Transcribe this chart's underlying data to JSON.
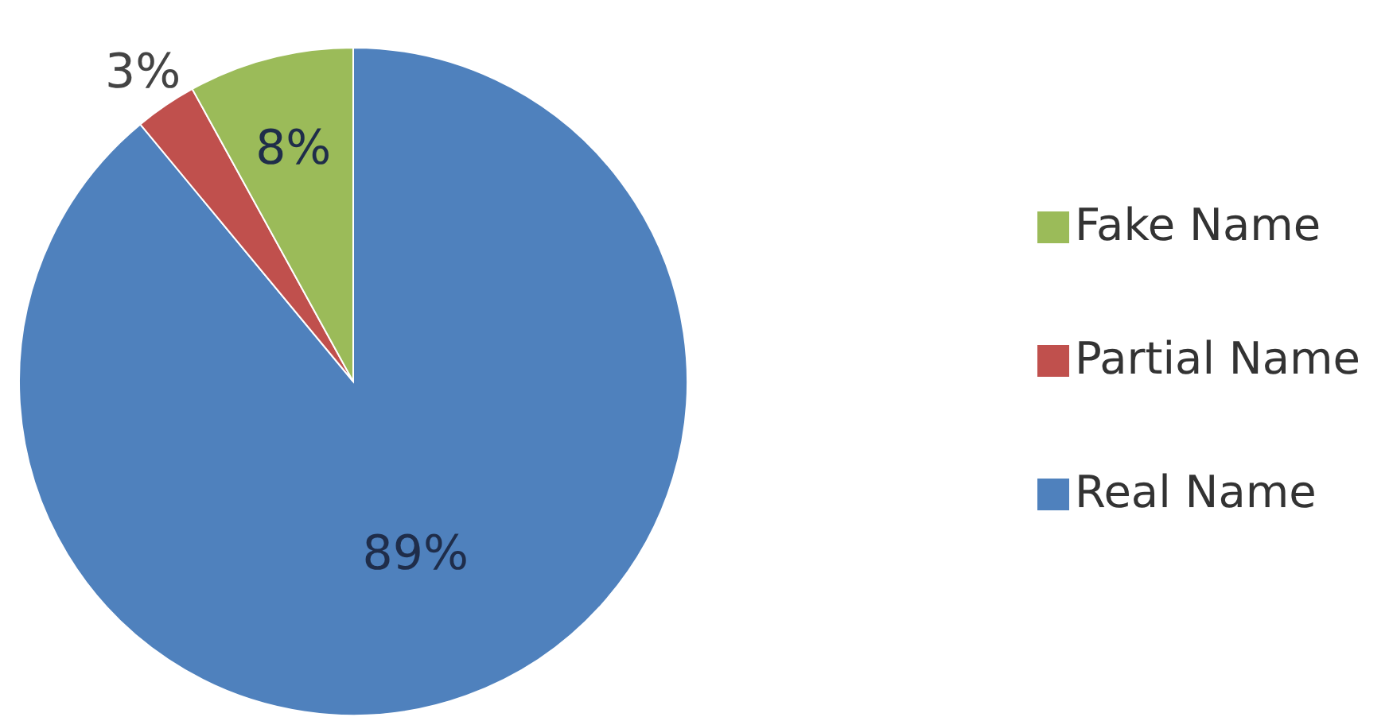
{
  "chart_data": {
    "type": "pie",
    "categories": [
      "Real Name",
      "Partial Name",
      "Fake Name"
    ],
    "values": [
      89,
      3,
      8
    ],
    "colors": [
      "#4f81bd",
      "#c0504d",
      "#9bbb59"
    ],
    "value_labels": [
      "89%",
      "3%",
      "8%"
    ],
    "legend": "right"
  }
}
